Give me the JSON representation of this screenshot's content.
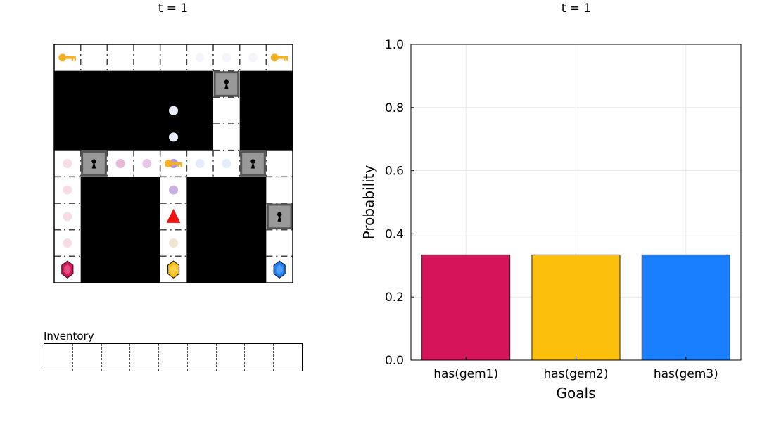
{
  "gridworld": {
    "title": "t = 1",
    "inventory_label": "Inventory",
    "inventory_slots": 9,
    "rows": [
      "k.......k",
      "######D##",
      "######.##",
      "######.##",
      ".D..k..D.",
      ".###.###.",
      ".###.###D",
      ".###.###.",
      "g###g###g"
    ],
    "gems": [
      {
        "row": 8,
        "col": 0,
        "color": "#d6145a"
      },
      {
        "row": 8,
        "col": 4,
        "color": "#fbbf0c"
      },
      {
        "row": 8,
        "col": 8,
        "color": "#1a7fff"
      }
    ],
    "agent": {
      "row": 6,
      "col": 4,
      "color": "#ee1111",
      "icon": "triangle-agent-icon"
    },
    "trail": [
      {
        "row": 0,
        "col": 5,
        "color": "#f4f6fb"
      },
      {
        "row": 0,
        "col": 6,
        "color": "#f4f6fb"
      },
      {
        "row": 0,
        "col": 7,
        "color": "#f4f6fb"
      },
      {
        "row": 2,
        "col": 4,
        "color": "#e8effc"
      },
      {
        "row": 3,
        "col": 4,
        "color": "#e8effc"
      },
      {
        "row": 4,
        "col": 0,
        "color": "#f6dce6"
      },
      {
        "row": 4,
        "col": 2,
        "color": "#e8b8d8"
      },
      {
        "row": 4,
        "col": 3,
        "color": "#e6c6e4"
      },
      {
        "row": 4,
        "col": 4,
        "color": "#b89ad6"
      },
      {
        "row": 4,
        "col": 5,
        "color": "#e4ecfb"
      },
      {
        "row": 4,
        "col": 6,
        "color": "#e4ecfb"
      },
      {
        "row": 5,
        "col": 0,
        "color": "#f6dce6"
      },
      {
        "row": 5,
        "col": 4,
        "color": "#c8b0e0"
      },
      {
        "row": 6,
        "col": 0,
        "color": "#f6dce6"
      },
      {
        "row": 7,
        "col": 0,
        "color": "#f6dce6"
      },
      {
        "row": 7,
        "col": 4,
        "color": "#eee6d2"
      }
    ],
    "colors": {
      "wall": "#000000",
      "floor": "#ffffff",
      "door": "#999999",
      "door_border": "#555555",
      "key": "#f3b022"
    }
  },
  "chart_data": {
    "type": "bar",
    "title": "t = 1",
    "categories": [
      "has(gem1)",
      "has(gem2)",
      "has(gem3)"
    ],
    "values": [
      0.3333,
      0.3333,
      0.3333
    ],
    "colors": [
      "#d6145a",
      "#fbbf0c",
      "#1a7fff"
    ],
    "xlabel": "Goals",
    "ylabel": "Probability",
    "ylim": [
      0,
      1
    ],
    "yticks": [
      0.0,
      0.2,
      0.4,
      0.6,
      0.8,
      1.0
    ],
    "ytick_labels": [
      "0.0",
      "0.2",
      "0.4",
      "0.6",
      "0.8",
      "1.0"
    ],
    "grid": true,
    "legend": "none"
  }
}
